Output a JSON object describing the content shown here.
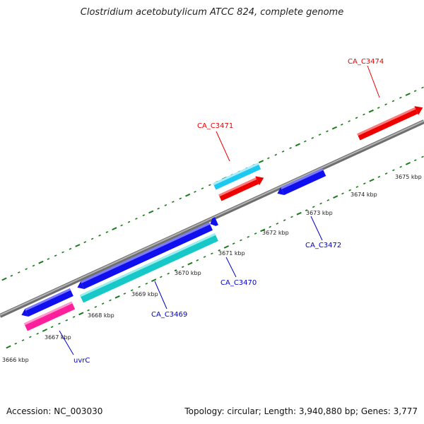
{
  "title": "Clostridium acetobutylicum ATCC 824, complete genome",
  "footer": {
    "accession": "Accession: NC_003030",
    "summary": "Topology: circular; Length: 3,940,880 bp; Genes: 3,777"
  },
  "tick_labels": [
    "3666 kbp",
    "3667 kbp",
    "3668 kbp",
    "3669 kbp",
    "3670 kbp",
    "3671 kbp",
    "3672 kbp",
    "3673 kbp",
    "3674 kbp",
    "3675 kbp"
  ],
  "genes": [
    {
      "name": "CA_C3474",
      "strand": "forward",
      "color": "#ff0000"
    },
    {
      "name": "CA_C3471",
      "strand": "forward",
      "color": "#ff0000"
    },
    {
      "name": "CA_C3472",
      "strand": "reverse",
      "color": "#0000ff"
    },
    {
      "name": "CA_C3470",
      "strand": "reverse",
      "color": "#0000ff"
    },
    {
      "name": "CA_C3469",
      "strand": "reverse",
      "color": "#0000ff"
    },
    {
      "name": "uvrC",
      "strand": "reverse",
      "color": "#0000ff"
    }
  ],
  "colors": {
    "backbone": "#8a8a8a",
    "ticks": "#1a7a1a",
    "cds_red": "#ff0000",
    "cds_blue": "#1010ee",
    "cds_cyan": "#1ccccc",
    "cds_lightblue": "#22c8f0",
    "cds_pink": "#ff1f9a"
  }
}
